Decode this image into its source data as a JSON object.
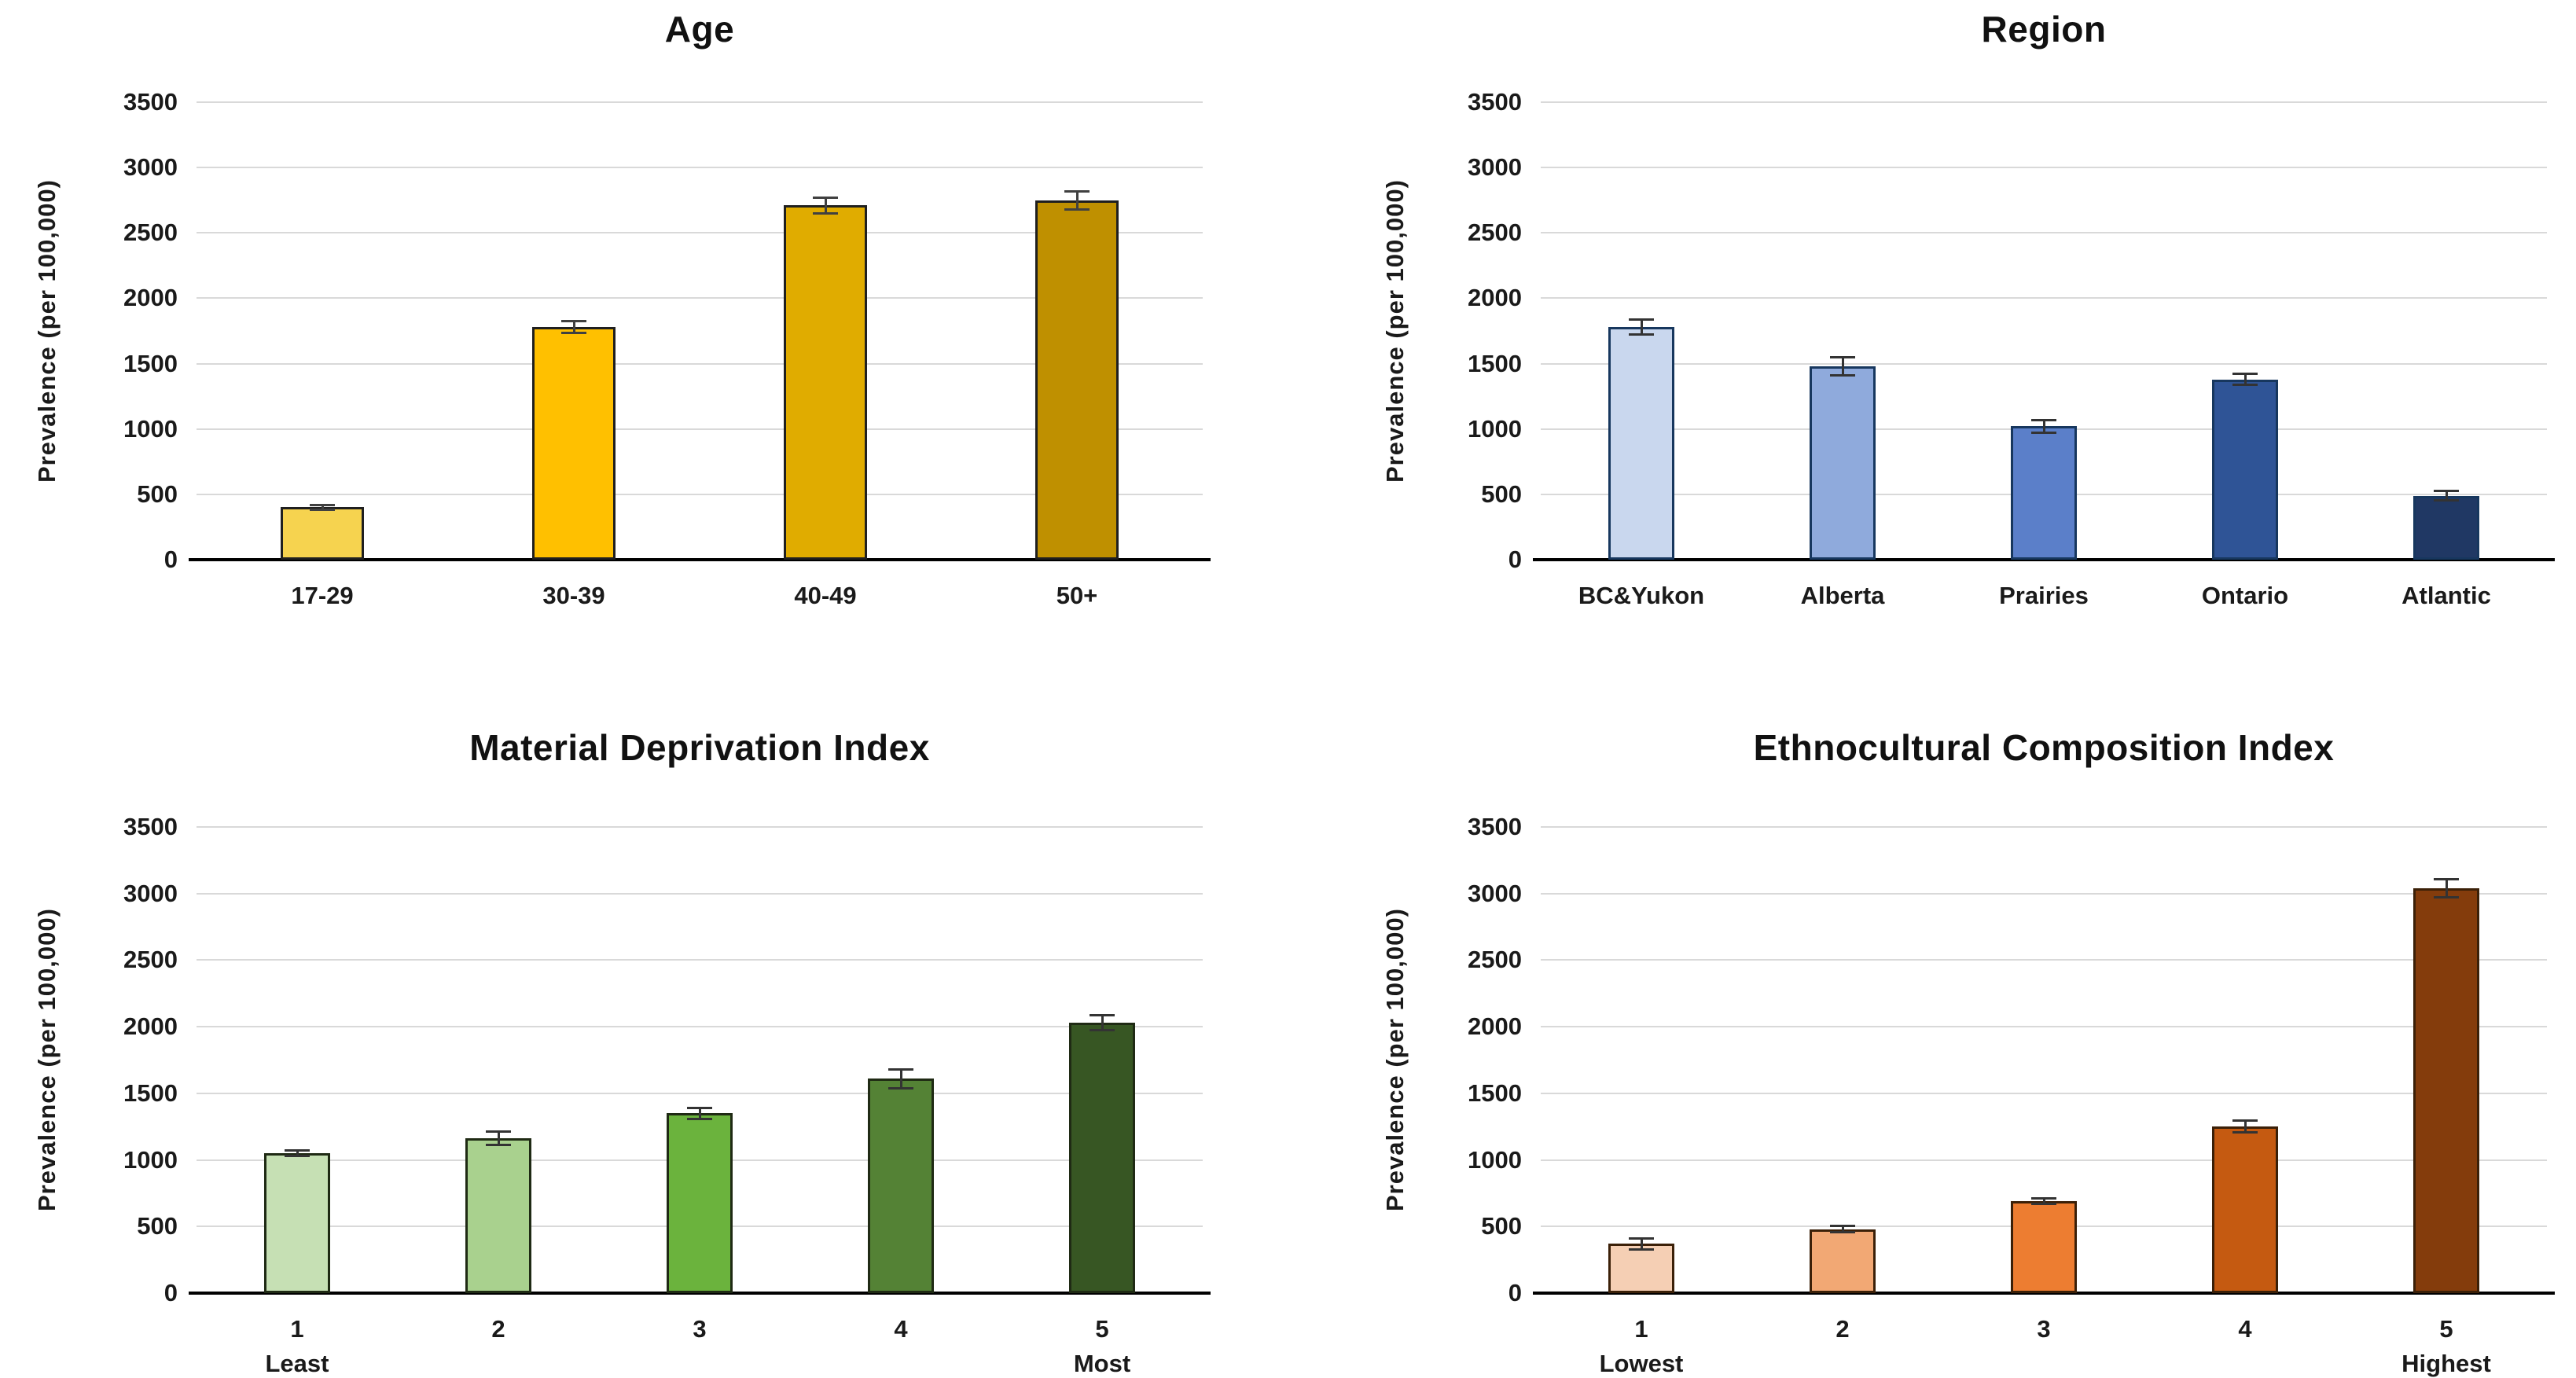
{
  "figure": {
    "background": "#ffffff",
    "layout": "2x2-bar-chart-grid"
  },
  "axis_style": {
    "grid_color": "#D9D9D9",
    "axis_color": "#000000",
    "tick_labels": [
      "3500",
      "3000",
      "2500",
      "2000",
      "1500",
      "1000",
      "500",
      "0"
    ]
  },
  "chart_data": [
    {
      "type": "bar",
      "title": "Age",
      "ylabel": "Prevalence (per 100,000)",
      "xlabel": "",
      "ylim": [
        0,
        3500
      ],
      "ytick_step": 500,
      "grid": true,
      "legend": "none",
      "categories": [
        "17-29",
        "30-39",
        "40-49",
        "50+"
      ],
      "sublabels": [
        "",
        "",
        "",
        ""
      ],
      "values": [
        400,
        1780,
        2710,
        2750
      ],
      "errors": [
        20,
        45,
        60,
        70
      ],
      "colors": [
        "#F6D34F",
        "#FFC000",
        "#E0AC00",
        "#BF9000"
      ],
      "bar_border": "#1F1F1F",
      "error_color": "#404040"
    },
    {
      "type": "bar",
      "title": "Region",
      "ylabel": "Prevalence (per 100,000)",
      "xlabel": "",
      "ylim": [
        0,
        3500
      ],
      "ytick_step": 500,
      "grid": true,
      "legend": "none",
      "categories": [
        "BC&Yukon",
        "Alberta",
        "Prairies",
        "Ontario",
        "Atlantic"
      ],
      "sublabels": [
        "",
        "",
        "",
        "",
        ""
      ],
      "values": [
        1780,
        1480,
        1020,
        1380,
        490
      ],
      "errors": [
        60,
        70,
        50,
        40,
        35
      ],
      "colors": [
        "#C9D7EE",
        "#8FAADC",
        "#5B7FC9",
        "#2F5496",
        "#203864"
      ],
      "bar_border": "#17375E",
      "error_color": "#333333"
    },
    {
      "type": "bar",
      "title": "Material Deprivation Index",
      "ylabel": "Prevalence (per 100,000)",
      "xlabel": "",
      "ylim": [
        0,
        3500
      ],
      "ytick_step": 500,
      "grid": true,
      "legend": "none",
      "categories": [
        "1",
        "2",
        "3",
        "4",
        "5"
      ],
      "sublabels": [
        "Least",
        "",
        "",
        "",
        "Most"
      ],
      "values": [
        1050,
        1160,
        1350,
        1610,
        2030
      ],
      "errors": [
        20,
        50,
        40,
        70,
        55
      ],
      "colors": [
        "#C6E0B4",
        "#A9D18E",
        "#6BB33D",
        "#548235",
        "#375623"
      ],
      "bar_border": "#1F2A14",
      "error_color": "#333333"
    },
    {
      "type": "bar",
      "title": "Ethnocultural Composition Index",
      "ylabel": "Prevalence (per 100,000)",
      "xlabel": "",
      "ylim": [
        0,
        3500
      ],
      "ytick_step": 500,
      "grid": true,
      "legend": "none",
      "categories": [
        "1",
        "2",
        "3",
        "4",
        "5"
      ],
      "sublabels": [
        "Lowest",
        "",
        "",
        "",
        "Highest"
      ],
      "values": [
        370,
        480,
        690,
        1250,
        3040
      ],
      "errors": [
        40,
        25,
        20,
        45,
        70
      ],
      "colors": [
        "#F5CFB4",
        "#F2A874",
        "#ED7D31",
        "#C55A11",
        "#843C0C"
      ],
      "bar_border": "#3B2008",
      "error_color": "#333333"
    }
  ]
}
